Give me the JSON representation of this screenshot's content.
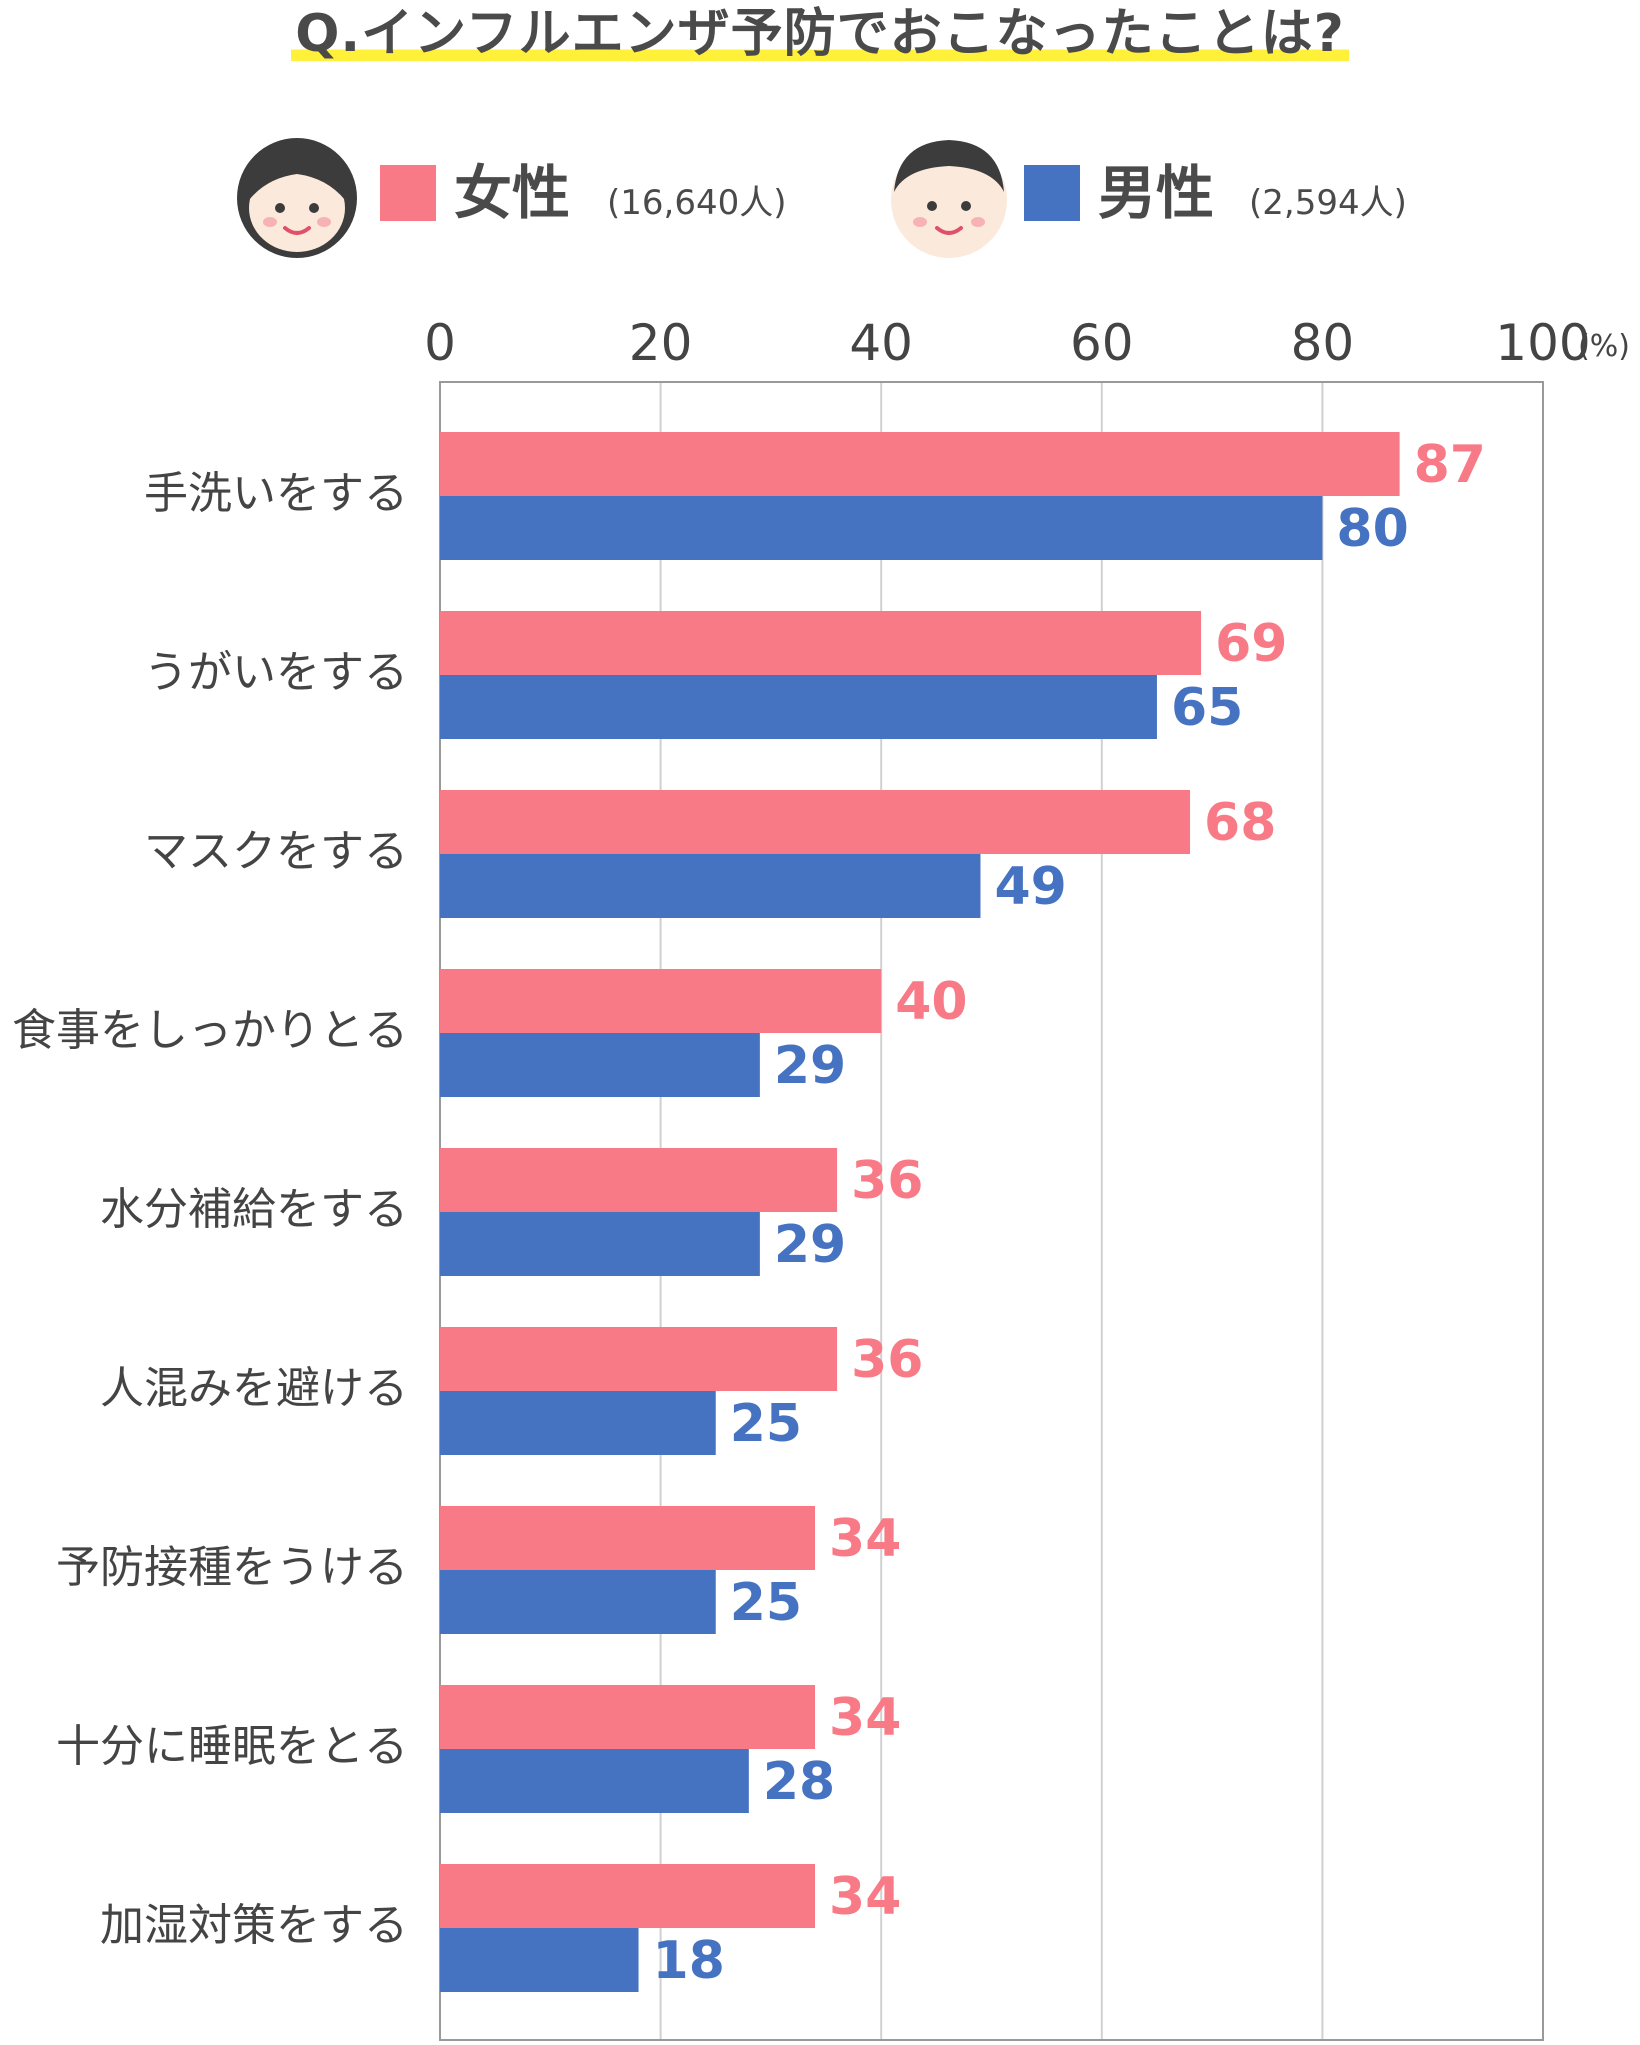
{
  "title": "Q.インフルエンザ予防でおこなったことは?",
  "legend": {
    "female": {
      "label": "女性",
      "count": "(16,640人)",
      "icon": "female-face-icon"
    },
    "male": {
      "label": "男性",
      "count": "(2,594人)",
      "icon": "male-face-icon"
    }
  },
  "colors": {
    "female": "#f97a87",
    "male": "#4673c1",
    "grid": "#d0d0d0",
    "axis": "#999999",
    "highlight": "#fff13a"
  },
  "chart_data": {
    "type": "bar",
    "orientation": "horizontal",
    "title": "Q.インフルエンザ予防でおこなったことは?",
    "unit": "(%)",
    "xlim": [
      0,
      100
    ],
    "ticks": [
      0,
      20,
      40,
      60,
      80,
      100
    ],
    "grid": true,
    "legend_position": "top",
    "categories": [
      "手洗いをする",
      "うがいをする",
      "マスクをする",
      "食事をしっかりとる",
      "水分補給をする",
      "人混みを避ける",
      "予防接種をうける",
      "十分に睡眠をとる",
      "加湿対策をする"
    ],
    "series": [
      {
        "name": "女性",
        "values": [
          87,
          69,
          68,
          40,
          36,
          36,
          34,
          34,
          34
        ]
      },
      {
        "name": "男性",
        "values": [
          80,
          65,
          49,
          29,
          29,
          25,
          25,
          28,
          18
        ]
      }
    ]
  }
}
